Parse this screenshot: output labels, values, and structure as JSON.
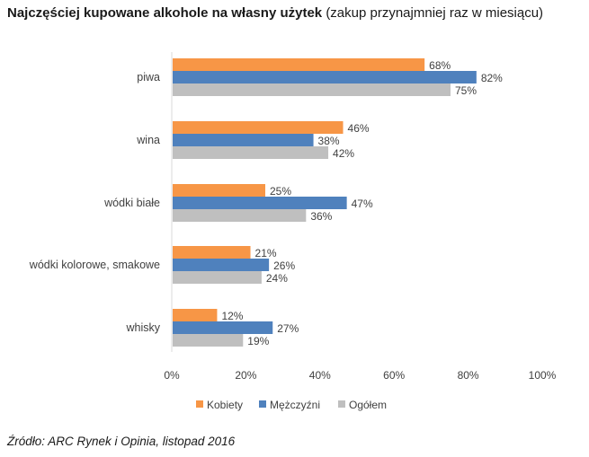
{
  "header": {
    "title_bold": "Najczęściej kupowane alkohole na własny użytek",
    "title_rest": "(zakup przynajmniej raz w miesiącu)"
  },
  "footer": {
    "source": "Źródło: ARC Rynek i Opinia, listopad 2016"
  },
  "colors": {
    "Kobiety": "#F79646",
    "Mężczyźni": "#4F81BD",
    "Ogółem": "#BFBFBF",
    "axis": "#D9D9D9",
    "text": "#404040"
  },
  "chart_data": {
    "type": "bar",
    "orientation": "horizontal",
    "title": "Najczęściej kupowane alkohole na własny użytek (zakup przynajmniej raz w miesiącu)",
    "categories": [
      "piwa",
      "wina",
      "wódki białe",
      "wódki kolorowe, smakowe",
      "whisky"
    ],
    "series": [
      {
        "name": "Kobiety",
        "values": [
          68,
          46,
          25,
          21,
          12
        ]
      },
      {
        "name": "Mężczyźni",
        "values": [
          82,
          38,
          47,
          26,
          27
        ]
      },
      {
        "name": "Ogółem",
        "values": [
          75,
          42,
          36,
          24,
          19
        ]
      }
    ],
    "xlim": [
      0,
      100
    ],
    "xticks": [
      "0%",
      "20%",
      "40%",
      "60%",
      "80%",
      "100%"
    ],
    "value_suffix": "%",
    "grid": false,
    "legend_position": "bottom"
  }
}
